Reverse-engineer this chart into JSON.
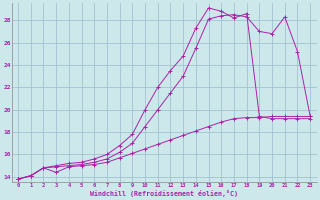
{
  "xlabel": "Windchill (Refroidissement éolien,°C)",
  "bg_color": "#cce8ea",
  "line_color": "#aa22aa",
  "grid_color": "#99bbcc",
  "xlim": [
    -0.5,
    23.5
  ],
  "ylim": [
    13.5,
    29.5
  ],
  "xticks": [
    0,
    1,
    2,
    3,
    4,
    5,
    6,
    7,
    8,
    9,
    10,
    11,
    12,
    13,
    14,
    15,
    16,
    17,
    18,
    19,
    20,
    21,
    22,
    23
  ],
  "yticks": [
    14,
    16,
    18,
    20,
    22,
    24,
    26,
    28
  ],
  "line1_x": [
    0,
    1,
    2,
    3,
    4,
    5,
    6,
    7,
    8,
    9,
    10,
    11,
    12,
    13,
    14,
    15,
    16,
    17,
    18,
    19,
    20,
    21,
    22,
    23
  ],
  "line1_y": [
    13.8,
    14.1,
    14.8,
    14.4,
    14.9,
    15.0,
    15.1,
    15.3,
    15.7,
    16.1,
    16.5,
    16.9,
    17.3,
    17.7,
    18.1,
    18.5,
    18.9,
    19.2,
    19.3,
    19.3,
    19.4,
    19.4,
    19.4,
    19.4
  ],
  "line2_x": [
    0,
    1,
    2,
    3,
    4,
    5,
    6,
    7,
    8,
    9,
    10,
    11,
    12,
    13,
    14,
    15,
    16,
    17,
    18,
    19,
    20,
    21,
    22,
    23
  ],
  "line2_y": [
    13.8,
    14.1,
    14.8,
    14.9,
    15.0,
    15.1,
    15.3,
    15.6,
    16.2,
    17.0,
    18.5,
    20.0,
    21.5,
    23.0,
    25.5,
    28.1,
    28.4,
    28.5,
    28.3,
    27.0,
    26.8,
    28.3,
    25.2,
    19.4
  ],
  "line3_x": [
    0,
    1,
    2,
    3,
    4,
    5,
    6,
    7,
    8,
    9,
    10,
    11,
    12,
    13,
    14,
    15,
    16,
    17,
    18,
    19,
    20,
    21,
    22,
    23
  ],
  "line3_y": [
    13.8,
    14.1,
    14.8,
    15.0,
    15.2,
    15.3,
    15.6,
    16.0,
    16.8,
    17.8,
    20.0,
    22.0,
    23.5,
    24.8,
    27.3,
    29.1,
    28.8,
    28.2,
    28.6,
    19.4,
    19.2,
    19.2,
    19.2,
    19.2
  ]
}
